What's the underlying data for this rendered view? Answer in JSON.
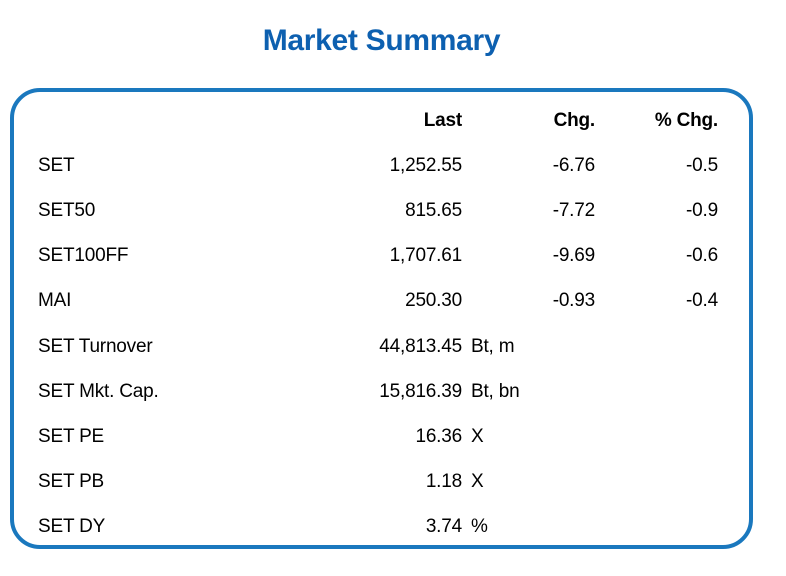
{
  "page": {
    "title": "Market Summary"
  },
  "colors": {
    "title_blue": "#0d60b0",
    "card_border_blue": "#1a78be",
    "text": "#000000",
    "background": "#ffffff"
  },
  "table": {
    "header": {
      "instrument": "",
      "last": "Last",
      "chg": "Chg.",
      "pct_chg": "% Chg."
    },
    "rows": [
      {
        "label": "SET",
        "last": "1,252.55",
        "unit": "",
        "chg": "-6.76",
        "pct_chg": "-0.5"
      },
      {
        "label": "SET50",
        "last": "815.65",
        "unit": "",
        "chg": "-7.72",
        "pct_chg": "-0.9"
      },
      {
        "label": "SET100FF",
        "last": "1,707.61",
        "unit": "",
        "chg": "-9.69",
        "pct_chg": "-0.6"
      },
      {
        "label": "MAI",
        "last": "250.30",
        "unit": "",
        "chg": "-0.93",
        "pct_chg": "-0.4"
      },
      {
        "label": "SET Turnover",
        "last": "44,813.45",
        "unit": "Bt, m",
        "chg": "",
        "pct_chg": ""
      },
      {
        "label": "SET Mkt. Cap.",
        "last": "15,816.39",
        "unit": "Bt, bn",
        "chg": "",
        "pct_chg": ""
      },
      {
        "label": "SET PE",
        "last": "16.36",
        "unit": "X",
        "chg": "",
        "pct_chg": ""
      },
      {
        "label": "SET PB",
        "last": "1.18",
        "unit": "X",
        "chg": "",
        "pct_chg": ""
      },
      {
        "label": "SET DY",
        "last": "3.74",
        "unit": "%",
        "chg": "",
        "pct_chg": ""
      }
    ]
  }
}
